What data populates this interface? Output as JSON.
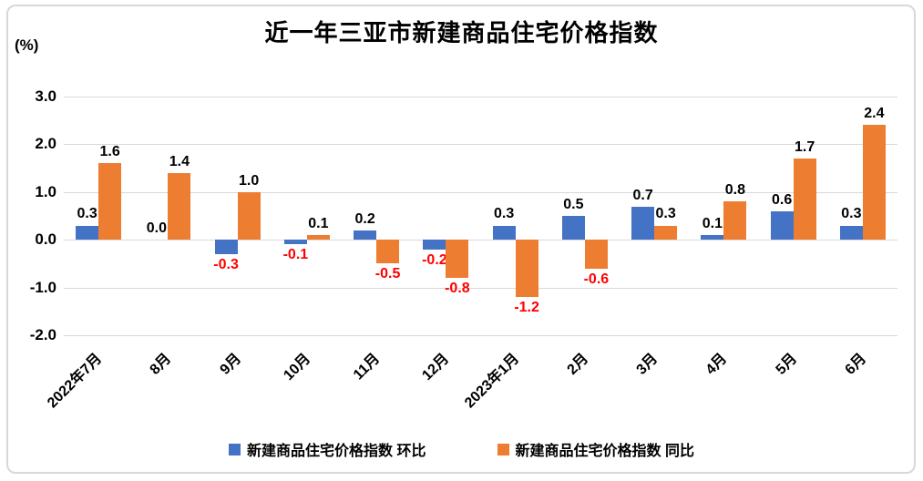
{
  "chart_data": {
    "type": "bar",
    "title": "近一年三亚市新建商品住宅价格指数",
    "unit_label": "(%)",
    "categories": [
      "2022年7月",
      "8月",
      "9月",
      "10月",
      "11月",
      "12月",
      "2023年1月",
      "2月",
      "3月",
      "4月",
      "5月",
      "6月"
    ],
    "series": [
      {
        "name": "新建商品住宅价格指数 环比",
        "color": "#4472C4",
        "values": [
          0.3,
          0.0,
          -0.3,
          -0.1,
          0.2,
          -0.2,
          0.3,
          0.5,
          0.7,
          0.1,
          0.6,
          0.3
        ]
      },
      {
        "name": "新建商品住宅价格指数 同比",
        "color": "#ED7D31",
        "values": [
          1.6,
          1.4,
          1.0,
          0.1,
          -0.5,
          -0.8,
          -1.2,
          -0.6,
          0.3,
          0.8,
          1.7,
          2.4
        ]
      }
    ],
    "ylim": [
      -2.0,
      3.0
    ],
    "yticks": [
      "3.0",
      "2.0",
      "1.0",
      "0.0",
      "-1.0",
      "-2.0"
    ],
    "grid": true,
    "gridline_color": "#d9d9d9",
    "legend_position": "bottom",
    "label_color_positive": "#000000",
    "label_color_negative": "#FF0000"
  }
}
